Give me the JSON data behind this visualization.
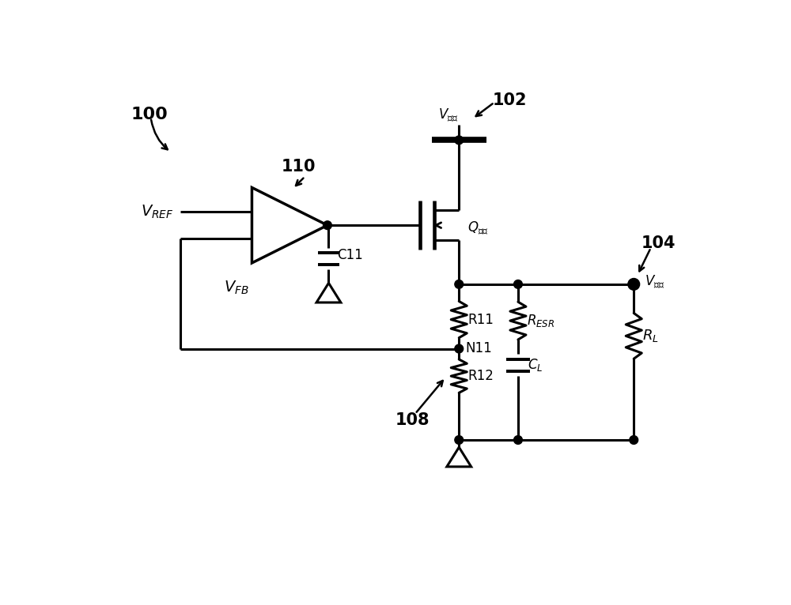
{
  "bg_color": "#ffffff",
  "line_color": "#000000",
  "line_width": 2.2,
  "fig_w": 10.0,
  "fig_h": 7.66,
  "xlim": [
    0,
    10
  ],
  "ylim": [
    0,
    7.66
  ],
  "labels": {
    "label_100": "100",
    "label_102": "102",
    "label_104": "104",
    "label_108": "108",
    "label_110": "110",
    "v_ref": "$V_{REF}$",
    "v_fb": "$V_{FB}$",
    "v_in": "$V_{输入}$",
    "v_out": "$V_{输出}$",
    "q_label": "$Q_{传输}$",
    "c11": "C11",
    "r11": "R11",
    "r12": "R12",
    "n11": "N11",
    "r_esr": "$R_{ESR}$",
    "r_l": "$R_L$",
    "c_l": "$C_L$"
  }
}
